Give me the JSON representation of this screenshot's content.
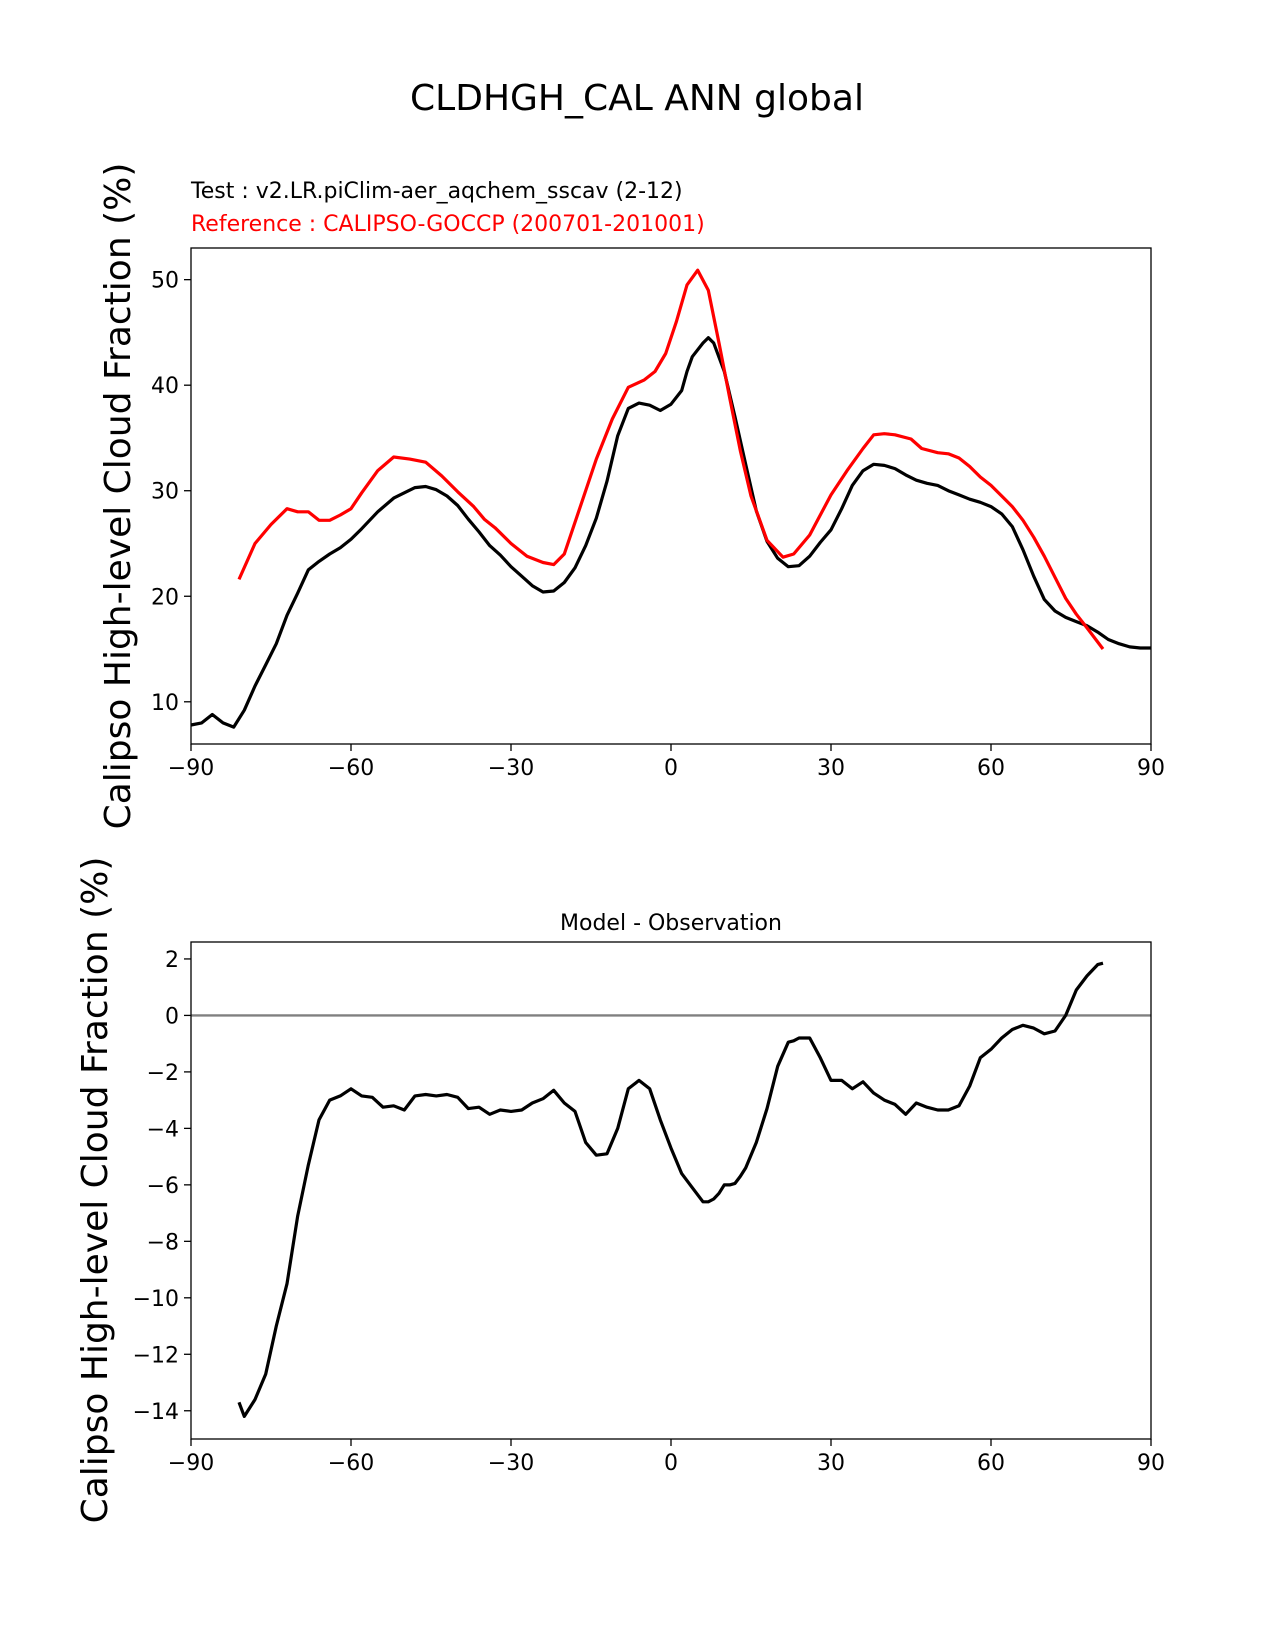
{
  "figure": {
    "title": "CLDHGH_CAL ANN global",
    "test_label": "Test : v2.LR.piClim-aer_aqchem_sscav (2-12)",
    "reference_label": "Reference : CALIPSO-GOCCP (200701-201001)",
    "colors": {
      "test": "#000000",
      "reference": "#ff0000",
      "zero_line": "#808080"
    }
  },
  "chart_data": [
    {
      "type": "line",
      "title": "",
      "xlabel": "",
      "ylabel": "Calipso High-level Cloud Fraction (%)",
      "xlim": [
        -90,
        90
      ],
      "ylim": [
        6.0,
        53.0
      ],
      "xticks": [
        -90,
        -60,
        -30,
        0,
        30,
        60,
        90
      ],
      "xtick_labels": [
        "−90",
        "−60",
        "−30",
        "0",
        "30",
        "60",
        "90"
      ],
      "yticks": [
        10,
        20,
        30,
        40,
        50
      ],
      "ytick_labels": [
        "10",
        "20",
        "30",
        "40",
        "50"
      ],
      "series": [
        {
          "name": "Test : v2.LR.piClim-aer_aqchem_sscav (2-12)",
          "color": "#000000",
          "x": [
            -90,
            -88,
            -86,
            -84,
            -82,
            -80,
            -78,
            -76,
            -74,
            -72,
            -70,
            -68,
            -66,
            -64,
            -62,
            -60,
            -58,
            -55,
            -52,
            -50,
            -48,
            -46,
            -44,
            -42,
            -40,
            -38,
            -36,
            -34,
            -32,
            -30,
            -28,
            -26,
            -24,
            -22,
            -20,
            -18,
            -16,
            -14,
            -12,
            -10,
            -8,
            -6,
            -4,
            -2,
            0,
            2,
            3,
            4,
            6,
            7,
            8,
            10,
            12,
            14,
            16,
            18,
            20,
            22,
            24,
            26,
            28,
            30,
            32,
            34,
            36,
            38,
            40,
            42,
            44,
            46,
            48,
            50,
            52,
            54,
            56,
            58,
            60,
            62,
            64,
            66,
            68,
            70,
            72,
            74,
            76,
            78,
            80,
            82,
            84,
            86,
            88,
            90
          ],
          "values": [
            7.8,
            8.0,
            8.8,
            8.0,
            7.6,
            9.2,
            11.5,
            13.5,
            15.5,
            18.2,
            20.3,
            22.5,
            23.3,
            24.0,
            24.6,
            25.4,
            26.4,
            28.0,
            29.3,
            29.8,
            30.3,
            30.4,
            30.1,
            29.5,
            28.6,
            27.3,
            26.1,
            24.8,
            23.9,
            22.8,
            21.9,
            21.0,
            20.4,
            20.5,
            21.3,
            22.7,
            24.8,
            27.4,
            30.9,
            35.2,
            37.8,
            38.3,
            38.1,
            37.6,
            38.2,
            39.5,
            41.3,
            42.7,
            44.0,
            44.5,
            44.0,
            41.3,
            37.0,
            32.5,
            28.1,
            25.2,
            23.6,
            22.8,
            22.9,
            23.8,
            25.1,
            26.3,
            28.3,
            30.5,
            31.9,
            32.5,
            32.4,
            32.1,
            31.5,
            31.0,
            30.7,
            30.5,
            30.0,
            29.6,
            29.2,
            28.9,
            28.5,
            27.8,
            26.6,
            24.4,
            21.9,
            19.7,
            18.6,
            18.0,
            17.6,
            17.2,
            16.6,
            15.9,
            15.5,
            15.2,
            15.1,
            15.1
          ]
        },
        {
          "name": "Reference : CALIPSO-GOCCP (200701-201001)",
          "color": "#ff0000",
          "x": [
            -81,
            -78,
            -75,
            -72,
            -70,
            -68,
            -66,
            -64,
            -62,
            -60,
            -58,
            -55,
            -52,
            -49,
            -46,
            -43,
            -40,
            -37,
            -35,
            -33,
            -30,
            -27,
            -24,
            -22,
            -20,
            -17,
            -14,
            -11,
            -8,
            -5,
            -3,
            -1,
            1,
            3,
            5,
            7,
            9,
            11,
            13,
            15,
            18,
            21,
            23,
            26,
            28,
            30,
            33,
            36,
            38,
            40,
            42,
            45,
            47,
            50,
            52,
            54,
            56,
            58,
            60,
            62,
            64,
            66,
            68,
            70,
            72,
            74,
            76,
            78,
            81
          ],
          "values": [
            21.6,
            25.0,
            26.8,
            28.3,
            28.0,
            28.0,
            27.2,
            27.2,
            27.7,
            28.3,
            29.8,
            31.9,
            33.2,
            33.0,
            32.7,
            31.4,
            29.9,
            28.5,
            27.3,
            26.5,
            25.0,
            23.8,
            23.2,
            23.0,
            24.0,
            28.5,
            33.0,
            36.8,
            39.8,
            40.5,
            41.3,
            43.0,
            46.0,
            49.5,
            50.9,
            49.0,
            44.0,
            38.8,
            33.8,
            29.5,
            25.3,
            23.7,
            24.0,
            25.8,
            27.7,
            29.6,
            31.9,
            34.0,
            35.3,
            35.4,
            35.3,
            34.9,
            34.0,
            33.6,
            33.5,
            33.1,
            32.3,
            31.3,
            30.5,
            29.5,
            28.5,
            27.2,
            25.6,
            23.8,
            21.8,
            19.8,
            18.3,
            17.0,
            15.0
          ]
        }
      ]
    },
    {
      "type": "line",
      "title": "Model - Observation",
      "xlabel": "",
      "ylabel": "Calipso High-level Cloud Fraction (%)",
      "xlim": [
        -90,
        90
      ],
      "ylim": [
        -15.0,
        2.6
      ],
      "xticks": [
        -90,
        -60,
        -30,
        0,
        30,
        60,
        90
      ],
      "xtick_labels": [
        "−90",
        "−60",
        "−30",
        "0",
        "30",
        "60",
        "90"
      ],
      "yticks": [
        2,
        0,
        -2,
        -4,
        -6,
        -8,
        -10,
        -12,
        -14
      ],
      "ytick_labels": [
        "2",
        "0",
        "−2",
        "−4",
        "−6",
        "−8",
        "−10",
        "−12",
        "−14"
      ],
      "reference_line": {
        "y": 0,
        "color": "#808080"
      },
      "series": [
        {
          "name": "Model - Observation",
          "color": "#000000",
          "x": [
            -81,
            -80,
            -78,
            -76,
            -74,
            -72,
            -70,
            -68,
            -66,
            -64,
            -62,
            -60,
            -58,
            -56,
            -54,
            -52,
            -50,
            -48,
            -46,
            -44,
            -42,
            -40,
            -38,
            -36,
            -34,
            -32,
            -30,
            -28,
            -26,
            -24,
            -22,
            -20,
            -18,
            -16,
            -14,
            -12,
            -10,
            -8,
            -6,
            -4,
            -2,
            0,
            2,
            4,
            6,
            7,
            8,
            9,
            10,
            11,
            12,
            13,
            14,
            16,
            18,
            20,
            22,
            23,
            24,
            26,
            28,
            30,
            32,
            34,
            36,
            38,
            40,
            42,
            44,
            46,
            48,
            50,
            52,
            54,
            56,
            58,
            60,
            62,
            64,
            66,
            68,
            70,
            72,
            74,
            76,
            78,
            80,
            81
          ],
          "values": [
            -13.7,
            -14.2,
            -13.6,
            -12.7,
            -11.0,
            -9.5,
            -7.1,
            -5.3,
            -3.7,
            -3.0,
            -2.85,
            -2.6,
            -2.85,
            -2.9,
            -3.25,
            -3.2,
            -3.35,
            -2.85,
            -2.8,
            -2.85,
            -2.8,
            -2.9,
            -3.3,
            -3.25,
            -3.5,
            -3.35,
            -3.4,
            -3.35,
            -3.1,
            -2.95,
            -2.65,
            -3.1,
            -3.4,
            -4.5,
            -4.95,
            -4.9,
            -4.0,
            -2.6,
            -2.3,
            -2.6,
            -3.7,
            -4.7,
            -5.6,
            -6.1,
            -6.6,
            -6.6,
            -6.5,
            -6.3,
            -6.0,
            -6.0,
            -5.95,
            -5.7,
            -5.4,
            -4.5,
            -3.3,
            -1.8,
            -0.95,
            -0.9,
            -0.8,
            -0.8,
            -1.5,
            -2.3,
            -2.3,
            -2.6,
            -2.35,
            -2.75,
            -3.0,
            -3.15,
            -3.5,
            -3.1,
            -3.25,
            -3.35,
            -3.35,
            -3.2,
            -2.5,
            -1.5,
            -1.2,
            -0.8,
            -0.5,
            -0.35,
            -0.45,
            -0.65,
            -0.55,
            0.0,
            0.9,
            1.4,
            1.8,
            1.85
          ]
        }
      ]
    }
  ]
}
